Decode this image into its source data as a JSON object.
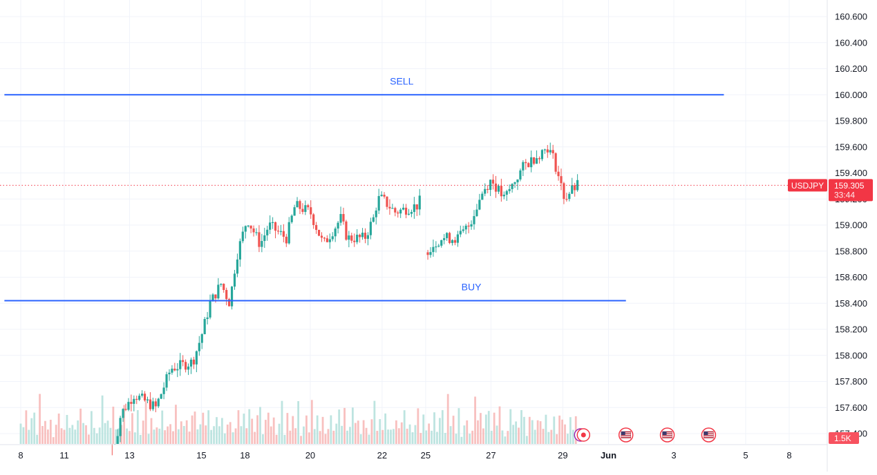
{
  "chart_data": {
    "type": "candlestick",
    "symbol": "USDJPY",
    "last_price": "159.305",
    "countdown": "33:44",
    "volume_label": "1.5K",
    "ylim": [
      157.3,
      160.65
    ],
    "y_ticks": [
      "160.600",
      "160.400",
      "160.200",
      "160.000",
      "159.800",
      "159.600",
      "159.400",
      "159.200",
      "159.000",
      "158.800",
      "158.600",
      "158.400",
      "158.200",
      "158.000",
      "157.800",
      "157.600",
      "157.400"
    ],
    "x_ticks": [
      {
        "label": "8",
        "x": -6.0
      },
      {
        "label": "11",
        "x": -4.0
      },
      {
        "label": "13",
        "x": -1.0
      },
      {
        "label": "15",
        "x": 2.3
      },
      {
        "label": "18",
        "x": 4.3
      },
      {
        "label": "20",
        "x": 7.3
      },
      {
        "label": "22",
        "x": 10.6
      },
      {
        "label": "25",
        "x": 12.6
      },
      {
        "label": "27",
        "x": 15.6
      },
      {
        "label": "29",
        "x": 18.9
      },
      {
        "label": "Jun",
        "x": 21.0
      },
      {
        "label": "3",
        "x": 24.0
      },
      {
        "label": "5",
        "x": 27.3
      },
      {
        "label": "8",
        "x": 29.3
      }
    ],
    "x_range": [
      -6.75,
      32.6
    ],
    "levels": [
      {
        "label": "SELL",
        "price": 160.0,
        "x_start": -6.75,
        "x_end": 26.3,
        "label_x": 11.5
      },
      {
        "label": "BUY",
        "price": 158.42,
        "x_start": -6.75,
        "x_end": 21.8,
        "label_x": 14.7
      }
    ],
    "colors": {
      "up": "#26a69a",
      "down": "#ef5350",
      "level": "#2962ff",
      "grid": "#f0f3fa",
      "axis_text": "#131722",
      "price_tag": "#f23645"
    },
    "price_path": [
      [
        -6.0,
        157.2
      ],
      [
        -1.8,
        157.2
      ],
      [
        -1.4,
        157.55
      ],
      [
        -0.8,
        157.7
      ],
      [
        0.2,
        157.6
      ],
      [
        0.9,
        157.9
      ],
      [
        1.9,
        157.95
      ],
      [
        2.3,
        158.15
      ],
      [
        2.7,
        158.4
      ],
      [
        3.2,
        158.55
      ],
      [
        3.6,
        158.4
      ],
      [
        3.9,
        158.75
      ],
      [
        4.4,
        159.05
      ],
      [
        5.0,
        158.85
      ],
      [
        5.4,
        159.0
      ],
      [
        6.2,
        158.9
      ],
      [
        6.6,
        159.15
      ],
      [
        7.3,
        159.1
      ],
      [
        7.9,
        158.85
      ],
      [
        8.7,
        159.05
      ],
      [
        9.0,
        158.9
      ],
      [
        9.8,
        158.9
      ],
      [
        10.2,
        159.05
      ],
      [
        10.4,
        159.2
      ],
      [
        10.6,
        159.2
      ],
      [
        11.2,
        159.1
      ],
      [
        12.2,
        159.15
      ],
      [
        12.4,
        159.2
      ],
      [
        12.6,
        158.8
      ],
      [
        13.3,
        158.9
      ],
      [
        14.1,
        158.9
      ],
      [
        14.6,
        159.0
      ],
      [
        15.2,
        159.25
      ],
      [
        15.6,
        159.35
      ],
      [
        16.2,
        159.2
      ],
      [
        17.1,
        159.45
      ],
      [
        18.2,
        159.6
      ],
      [
        18.5,
        159.5
      ],
      [
        18.9,
        159.25
      ],
      [
        19.0,
        159.2
      ],
      [
        19.2,
        159.25
      ],
      [
        19.6,
        159.305
      ]
    ],
    "volume_sample": [
      0.5,
      0.35,
      0.7,
      0.25,
      0.45,
      0.6,
      0.3,
      0.8,
      0.4,
      0.55,
      0.35,
      0.65,
      0.2,
      0.5,
      0.75,
      0.3,
      0.45,
      0.9,
      0.4,
      0.6,
      0.25,
      0.55,
      0.7,
      0.35,
      0.5,
      0.3,
      0.65,
      0.45,
      0.2,
      0.4,
      1.0,
      0.35,
      0.55,
      0.3,
      0.6,
      0.45,
      0.25,
      0.5,
      0.7,
      0.3,
      0.4,
      0.55,
      0.35,
      0.6,
      0.2,
      0.45,
      0.8,
      0.3,
      0.5,
      0.4
    ],
    "events": [
      {
        "name": "flag-event",
        "x": 19.85,
        "kind": "dot"
      },
      {
        "name": "flag-event",
        "x": 21.8,
        "kind": "us"
      },
      {
        "name": "flag-event",
        "x": 23.7,
        "kind": "us"
      },
      {
        "name": "flag-event",
        "x": 25.6,
        "kind": "us"
      }
    ]
  }
}
